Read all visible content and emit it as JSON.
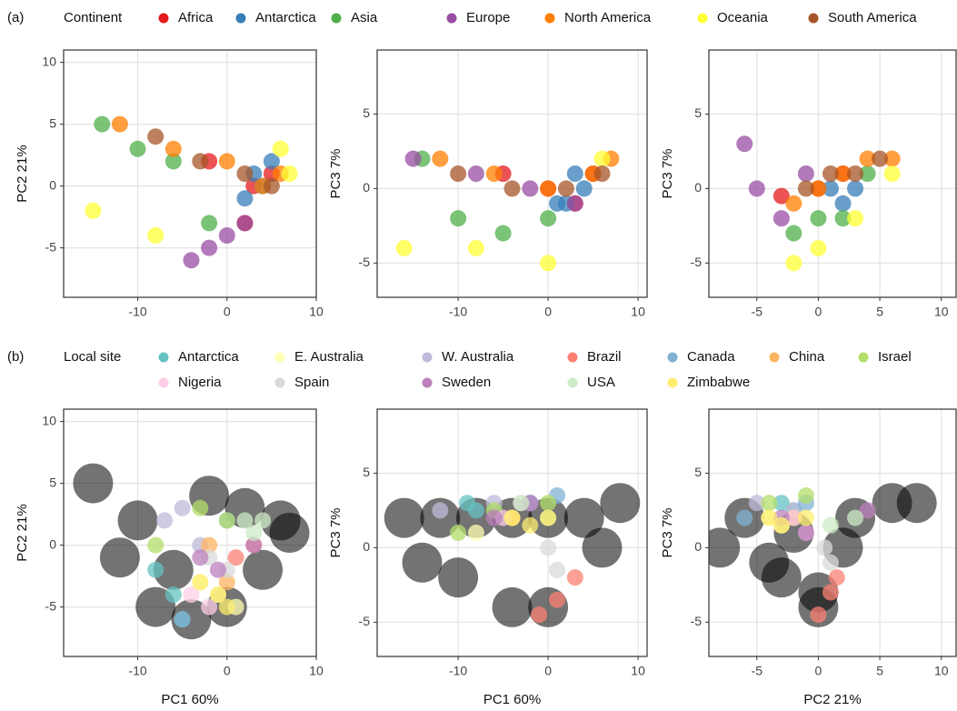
{
  "chart_data": [
    {
      "type": "scatter",
      "label": "(a)",
      "legend_title": "Continent",
      "y_label": "PC2 21%",
      "xlim": [
        -18.3,
        10
      ],
      "ylim": [
        -9,
        11
      ],
      "xticks": [
        -10,
        0,
        10
      ],
      "yticks": [
        -5,
        0,
        5,
        10
      ],
      "grid": true,
      "series": [
        {
          "name": "Africa",
          "color": "#e41a1c",
          "x": [
            2,
            3,
            -2,
            5
          ],
          "y": [
            -3,
            0,
            2,
            1
          ]
        },
        {
          "name": "Antarctica",
          "color": "#377eb8",
          "x": [
            3,
            4,
            2,
            5
          ],
          "y": [
            1,
            0,
            -1,
            2
          ]
        },
        {
          "name": "Asia",
          "color": "#4daf4a",
          "x": [
            -14,
            -10,
            -6,
            -2
          ],
          "y": [
            5,
            3,
            2,
            -3
          ]
        },
        {
          "name": "Europe",
          "color": "#984ea3",
          "x": [
            -4,
            -2,
            0,
            2
          ],
          "y": [
            -6,
            -5,
            -4,
            -3
          ]
        },
        {
          "name": "North America",
          "color": "#ff7f00",
          "x": [
            -12,
            -6,
            0,
            4,
            6
          ],
          "y": [
            5,
            3,
            2,
            0,
            1
          ]
        },
        {
          "name": "Oceania",
          "color": "#ffff33",
          "x": [
            -15,
            -8,
            6,
            7
          ],
          "y": [
            -2,
            -4,
            3,
            1
          ]
        },
        {
          "name": "South America",
          "color": "#a65628",
          "x": [
            -8,
            -3,
            2,
            5
          ],
          "y": [
            4,
            2,
            1,
            0
          ]
        }
      ]
    },
    {
      "type": "scatter",
      "y_label": "PC3 7%",
      "xlim": [
        -19,
        11
      ],
      "ylim": [
        -7.3,
        9.3
      ],
      "xticks": [
        -10,
        0,
        10
      ],
      "yticks": [
        -5,
        0,
        5
      ],
      "grid": true,
      "series": [
        {
          "color": "#e41a1c",
          "x": [
            0,
            3,
            -5,
            5
          ],
          "y": [
            0,
            -1,
            1,
            1
          ]
        },
        {
          "color": "#377eb8",
          "x": [
            2,
            4,
            1,
            3
          ],
          "y": [
            -1,
            0,
            -1,
            1
          ]
        },
        {
          "color": "#4daf4a",
          "x": [
            -14,
            -10,
            -5,
            0
          ],
          "y": [
            2,
            -2,
            -3,
            -2
          ]
        },
        {
          "color": "#984ea3",
          "x": [
            -15,
            -8,
            -2,
            3
          ],
          "y": [
            2,
            1,
            0,
            -1
          ]
        },
        {
          "color": "#ff7f00",
          "x": [
            -12,
            -6,
            0,
            5,
            7
          ],
          "y": [
            2,
            1,
            0,
            1,
            2
          ]
        },
        {
          "color": "#ffff33",
          "x": [
            -16,
            -8,
            0,
            6
          ],
          "y": [
            -4,
            -4,
            -5,
            2
          ]
        },
        {
          "color": "#a65628",
          "x": [
            -10,
            -4,
            2,
            6
          ],
          "y": [
            1,
            0,
            0,
            1
          ]
        }
      ]
    },
    {
      "type": "scatter",
      "y_label": "PC3 7%",
      "xlim": [
        -8.9,
        11.2
      ],
      "ylim": [
        -7.3,
        9.3
      ],
      "xticks": [
        -5,
        0,
        5,
        10
      ],
      "yticks": [
        -5,
        0,
        5
      ],
      "grid": true,
      "series": [
        {
          "color": "#e41a1c",
          "x": [
            -3,
            0,
            2
          ],
          "y": [
            -0.5,
            0,
            1
          ]
        },
        {
          "color": "#377eb8",
          "x": [
            1,
            2,
            3
          ],
          "y": [
            0,
            -1,
            0
          ]
        },
        {
          "color": "#4daf4a",
          "x": [
            -2,
            0,
            2,
            4
          ],
          "y": [
            -3,
            -2,
            -2,
            1
          ]
        },
        {
          "color": "#984ea3",
          "x": [
            -6,
            -5,
            -3,
            -1
          ],
          "y": [
            3,
            0,
            -2,
            1
          ]
        },
        {
          "color": "#ff7f00",
          "x": [
            -2,
            0,
            2,
            4,
            6
          ],
          "y": [
            -1,
            0,
            1,
            2,
            2
          ]
        },
        {
          "color": "#ffff33",
          "x": [
            -2,
            0,
            3,
            6
          ],
          "y": [
            -5,
            -4,
            -2,
            1
          ]
        },
        {
          "color": "#a65628",
          "x": [
            -1,
            1,
            3,
            5
          ],
          "y": [
            0,
            1,
            1,
            2
          ]
        }
      ]
    },
    {
      "type": "scatter",
      "label": "(b)",
      "legend_title": "Local site",
      "x_label": "PC1 60%",
      "y_label": "PC2 21%",
      "xlim": [
        -18.3,
        10
      ],
      "ylim": [
        -9,
        11
      ],
      "xticks": [
        -10,
        0,
        10
      ],
      "yticks": [
        -5,
        0,
        5,
        10
      ],
      "grid": true,
      "series": [
        {
          "color": "#000000",
          "x": [
            -15,
            -10,
            -6,
            -2,
            2,
            6,
            -8,
            -4,
            0,
            4,
            -12,
            7
          ],
          "y": [
            5,
            2,
            -2,
            4,
            3,
            2,
            -5,
            -6,
            -5,
            -2,
            -1,
            1
          ]
        },
        {
          "name": "Antarctica",
          "color": "#66c2c2",
          "x": [
            -8,
            -6,
            -5
          ],
          "y": [
            -2,
            -4,
            -6
          ]
        },
        {
          "name": "E. Australia",
          "color": "#ffffb3",
          "x": [
            -3,
            -1,
            1
          ],
          "y": [
            -3,
            -4,
            -5
          ]
        },
        {
          "name": "W. Australia",
          "color": "#bebada",
          "x": [
            -7,
            -5,
            -3
          ],
          "y": [
            2,
            3,
            0
          ]
        },
        {
          "name": "Brazil",
          "color": "#fb8072",
          "x": [
            1,
            3
          ],
          "y": [
            -1,
            0
          ]
        },
        {
          "name": "Canada",
          "color": "#80b1d3",
          "x": [
            -5,
            0
          ],
          "y": [
            -6,
            2
          ]
        },
        {
          "name": "China",
          "color": "#fdb462",
          "x": [
            -2,
            0
          ],
          "y": [
            0,
            -3
          ]
        },
        {
          "name": "Israel",
          "color": "#b3de69",
          "x": [
            -8,
            -3,
            0
          ],
          "y": [
            0,
            3,
            2
          ]
        },
        {
          "name": "Nigeria",
          "color": "#fccde5",
          "x": [
            -4,
            -2
          ],
          "y": [
            -4,
            -5
          ]
        },
        {
          "name": "Spain",
          "color": "#d9d9d9",
          "x": [
            -2,
            0
          ],
          "y": [
            -1,
            -2
          ]
        },
        {
          "name": "Sweden",
          "color": "#bc80bd",
          "x": [
            -3,
            -1,
            3
          ],
          "y": [
            -1,
            -2,
            0
          ]
        },
        {
          "name": "USA",
          "color": "#ccebc5",
          "x": [
            2,
            4,
            3
          ],
          "y": [
            2,
            2,
            1
          ]
        },
        {
          "name": "Zimbabwe",
          "color": "#ffed6f",
          "x": [
            -3,
            -1,
            0
          ],
          "y": [
            -3,
            -4,
            -5
          ]
        }
      ]
    },
    {
      "type": "scatter",
      "x_label": "PC1 60%",
      "y_label": "PC3 7%",
      "xlim": [
        -19,
        11
      ],
      "ylim": [
        -7.3,
        9.3
      ],
      "xticks": [
        -10,
        0,
        10
      ],
      "yticks": [
        -5,
        0,
        5
      ],
      "grid": true,
      "series": [
        {
          "color": "#000000",
          "x": [
            -16,
            -12,
            -8,
            -4,
            0,
            4,
            8,
            -10,
            -4,
            0,
            -14,
            6
          ],
          "y": [
            2,
            2,
            2,
            2,
            2,
            2,
            3,
            -2,
            -4,
            -4,
            -1,
            0
          ]
        },
        {
          "color": "#66c2c2",
          "x": [
            -9,
            -8
          ],
          "y": [
            3,
            2.5
          ]
        },
        {
          "color": "#ffffb3",
          "x": [
            -8,
            -4
          ],
          "y": [
            1,
            2
          ]
        },
        {
          "color": "#bebada",
          "x": [
            -12,
            -6,
            -2
          ],
          "y": [
            2.5,
            3,
            3
          ]
        },
        {
          "color": "#fb8072",
          "x": [
            -1,
            1,
            3
          ],
          "y": [
            -4.5,
            -3.5,
            -2
          ]
        },
        {
          "color": "#80b1d3",
          "x": [
            -2,
            1
          ],
          "y": [
            3,
            3.5
          ]
        },
        {
          "color": "#fdb462",
          "x": [
            -4
          ],
          "y": [
            2
          ]
        },
        {
          "color": "#b3de69",
          "x": [
            -10,
            -6,
            0
          ],
          "y": [
            1,
            2.5,
            3
          ]
        },
        {
          "color": "#fccde5",
          "x": [
            -5,
            -3
          ],
          "y": [
            2,
            3
          ]
        },
        {
          "color": "#d9d9d9",
          "x": [
            0,
            1
          ],
          "y": [
            0,
            -1.5
          ]
        },
        {
          "color": "#bc80bd",
          "x": [
            -6,
            -2
          ],
          "y": [
            2,
            3
          ]
        },
        {
          "color": "#ccebc5",
          "x": [
            -3,
            0
          ],
          "y": [
            3,
            2
          ]
        },
        {
          "color": "#ffed6f",
          "x": [
            -4,
            -2,
            0
          ],
          "y": [
            2,
            1.5,
            2
          ]
        }
      ]
    },
    {
      "type": "scatter",
      "x_label": "PC2 21%",
      "y_label": "PC3 7%",
      "xlim": [
        -8.9,
        11.2
      ],
      "ylim": [
        -7.3,
        9.3
      ],
      "xticks": [
        -5,
        0,
        5,
        10
      ],
      "yticks": [
        -5,
        0,
        5
      ],
      "grid": true,
      "series": [
        {
          "color": "#000000",
          "x": [
            -6,
            -3,
            0,
            3,
            6,
            -4,
            0,
            2,
            -2,
            8,
            -8
          ],
          "y": [
            2,
            -2,
            -4,
            2,
            3,
            -1,
            -3,
            0,
            1,
            3,
            0
          ]
        },
        {
          "color": "#66c2c2",
          "x": [
            -3,
            -2
          ],
          "y": [
            3,
            2.5
          ]
        },
        {
          "color": "#ffffb3",
          "x": [
            -4,
            -3
          ],
          "y": [
            2,
            1.5
          ]
        },
        {
          "color": "#bebada",
          "x": [
            -5,
            -2
          ],
          "y": [
            3,
            2.5
          ]
        },
        {
          "color": "#fb8072",
          "x": [
            0,
            1,
            1.5
          ],
          "y": [
            -4.5,
            -3,
            -2
          ]
        },
        {
          "color": "#80b1d3",
          "x": [
            -6,
            -1
          ],
          "y": [
            2,
            3
          ]
        },
        {
          "color": "#fdb462",
          "x": [
            -2
          ],
          "y": [
            2
          ]
        },
        {
          "color": "#b3de69",
          "x": [
            -4,
            -1
          ],
          "y": [
            3,
            3.5
          ]
        },
        {
          "color": "#fccde5",
          "x": [
            -2,
            -1
          ],
          "y": [
            2,
            1
          ]
        },
        {
          "color": "#d9d9d9",
          "x": [
            0.5,
            1
          ],
          "y": [
            0,
            -1
          ]
        },
        {
          "color": "#bc80bd",
          "x": [
            -3,
            -1,
            4
          ],
          "y": [
            2,
            1,
            2.5
          ]
        },
        {
          "color": "#ccebc5",
          "x": [
            1,
            3
          ],
          "y": [
            1.5,
            2
          ]
        },
        {
          "color": "#ffed6f",
          "x": [
            -4,
            -3,
            -1
          ],
          "y": [
            2,
            1.5,
            2
          ]
        }
      ]
    }
  ]
}
